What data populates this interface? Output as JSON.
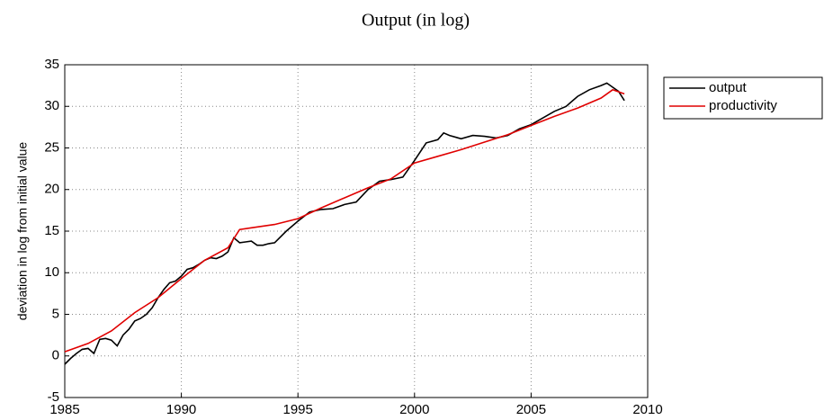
{
  "chart_data": {
    "type": "line",
    "title": "Output (in log)",
    "y_label": "deviation in log from initial value",
    "xlim": [
      1985,
      2010
    ],
    "xticks": [
      1985,
      1990,
      1995,
      2000,
      2005,
      2010
    ],
    "ylim": [
      -5,
      35
    ],
    "yticks": [
      -5,
      0,
      5,
      10,
      15,
      20,
      25,
      30,
      35
    ],
    "grid": true,
    "legend": "outside-top-right",
    "series": [
      {
        "name": "output",
        "color": "#000000",
        "x": [
          1985,
          1985.25,
          1985.5,
          1985.75,
          1986,
          1986.25,
          1986.5,
          1986.75,
          1987,
          1987.25,
          1987.5,
          1987.75,
          1988,
          1988.25,
          1988.5,
          1988.75,
          1989,
          1989.25,
          1989.5,
          1989.75,
          1990,
          1990.25,
          1990.5,
          1990.75,
          1991,
          1991.25,
          1991.5,
          1991.75,
          1992,
          1992.25,
          1992.5,
          1992.75,
          1993,
          1993.25,
          1993.5,
          1993.75,
          1994,
          1994.5,
          1995,
          1995.5,
          1996,
          1996.5,
          1997,
          1997.5,
          1998,
          1998.5,
          1999,
          1999.5,
          2000,
          2000.5,
          2001,
          2001.25,
          2001.5,
          2002,
          2002.5,
          2003,
          2003.5,
          2004,
          2004.5,
          2005,
          2005.5,
          2006,
          2006.5,
          2007,
          2007.5,
          2008,
          2008.25,
          2008.5,
          2008.75,
          2009
        ],
        "values": [
          -1.0,
          -0.3,
          0.3,
          0.8,
          0.9,
          0.3,
          2.0,
          2.1,
          1.9,
          1.2,
          2.5,
          3.2,
          4.2,
          4.5,
          5.0,
          5.8,
          7.0,
          8.0,
          8.8,
          9.0,
          9.6,
          10.4,
          10.6,
          11.0,
          11.5,
          11.8,
          11.7,
          12.0,
          12.5,
          14.2,
          13.6,
          13.7,
          13.8,
          13.3,
          13.3,
          13.5,
          13.6,
          15.0,
          16.2,
          17.3,
          17.6,
          17.7,
          18.2,
          18.5,
          20.0,
          21.0,
          21.2,
          21.5,
          23.5,
          25.6,
          26.0,
          26.8,
          26.5,
          26.1,
          26.5,
          26.4,
          26.2,
          26.5,
          27.3,
          27.8,
          28.6,
          29.4,
          30.0,
          31.2,
          32.0,
          32.5,
          32.8,
          32.3,
          31.8,
          30.7
        ]
      },
      {
        "name": "productivity",
        "color": "#e00000",
        "x": [
          1985,
          1986,
          1987,
          1988,
          1989,
          1990,
          1991,
          1992,
          1992.5,
          1993,
          1994,
          1995,
          1996,
          1997,
          1998,
          1999,
          2000,
          2001,
          2002,
          2003,
          2004,
          2005,
          2006,
          2007,
          2008,
          2008.5,
          2009
        ],
        "values": [
          0.5,
          1.5,
          3.0,
          5.2,
          7.0,
          9.3,
          11.5,
          13.0,
          15.2,
          15.4,
          15.8,
          16.5,
          17.8,
          19.0,
          20.2,
          21.3,
          23.2,
          24.0,
          24.8,
          25.7,
          26.6,
          27.7,
          28.8,
          29.8,
          31.0,
          32.0,
          31.5
        ]
      }
    ]
  }
}
